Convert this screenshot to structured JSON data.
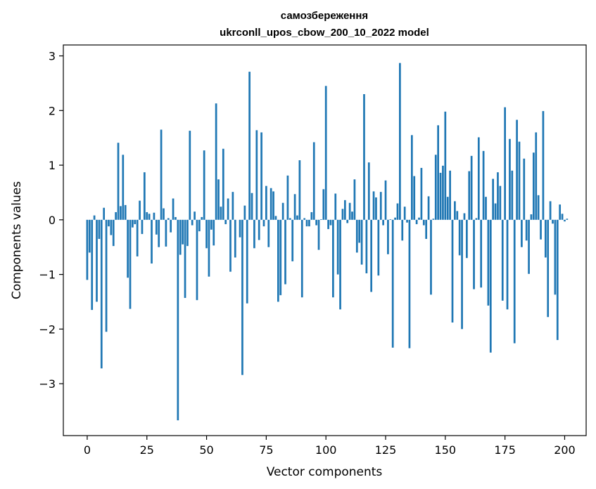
{
  "chart_data": {
    "type": "bar",
    "title": "самозбереження",
    "subtitle": "ukrconll_upos_cbow_200_10_2022 model",
    "xlabel": "Vector components",
    "ylabel": "Components values",
    "xlim": [
      -10,
      209
    ],
    "ylim": [
      -3.95,
      3.2
    ],
    "x_ticks": [
      0,
      25,
      50,
      75,
      100,
      125,
      150,
      175,
      200
    ],
    "y_ticks": [
      -3,
      -2,
      -1,
      0,
      1,
      2,
      3
    ],
    "bar_color": "#1f77b4",
    "grid": false,
    "values": [
      -1.1,
      -0.6,
      -1.65,
      0.08,
      -1.5,
      -0.35,
      -2.72,
      0.22,
      -2.05,
      -0.12,
      -0.28,
      -0.48,
      0.14,
      1.41,
      0.25,
      1.19,
      0.27,
      -1.06,
      -1.63,
      -0.14,
      -0.08,
      -0.67,
      0.35,
      -0.26,
      0.87,
      0.14,
      0.11,
      -0.8,
      0.13,
      -0.27,
      -0.5,
      1.65,
      0.21,
      -0.49,
      0.03,
      -0.23,
      0.39,
      0.05,
      -3.67,
      -0.64,
      -0.45,
      -1.43,
      -0.48,
      1.63,
      -0.1,
      0.15,
      -1.47,
      -0.21,
      0.05,
      1.27,
      -0.52,
      -1.04,
      -0.18,
      -0.47,
      2.13,
      0.74,
      0.24,
      1.3,
      -0.08,
      0.39,
      -0.95,
      0.51,
      -0.69,
      0.0,
      -0.32,
      -2.84,
      0.26,
      -1.53,
      2.71,
      0.49,
      -0.52,
      1.64,
      -0.37,
      1.6,
      -0.12,
      0.62,
      -0.5,
      0.58,
      0.52,
      0.07,
      -1.5,
      -1.38,
      0.31,
      -1.18,
      0.81,
      0.03,
      -0.76,
      0.47,
      0.08,
      1.09,
      -1.42,
      0.03,
      -0.12,
      -0.12,
      0.14,
      1.42,
      -0.1,
      -0.55,
      0.01,
      0.56,
      2.45,
      -0.17,
      -0.1,
      -1.42,
      0.48,
      -1.0,
      -1.64,
      0.2,
      0.36,
      -0.06,
      0.31,
      0.15,
      0.74,
      -0.6,
      -0.42,
      -0.82,
      2.3,
      -0.98,
      1.05,
      -1.32,
      0.52,
      0.41,
      -1.02,
      0.51,
      -0.1,
      0.72,
      -0.63,
      0.01,
      -2.34,
      0.04,
      0.3,
      2.87,
      -0.38,
      0.24,
      -0.05,
      -2.35,
      1.55,
      0.8,
      -0.08,
      0.04,
      0.95,
      -0.1,
      -0.35,
      0.43,
      -1.37,
      0.02,
      1.19,
      1.73,
      0.86,
      0.99,
      1.98,
      0.42,
      0.9,
      -1.88,
      0.34,
      0.16,
      -0.65,
      -2.0,
      0.12,
      -0.7,
      0.89,
      1.17,
      -1.27,
      0.03,
      1.51,
      -1.24,
      1.26,
      0.42,
      -1.57,
      -2.43,
      0.75,
      0.3,
      0.87,
      0.62,
      -1.48,
      2.06,
      -1.64,
      1.48,
      0.9,
      -2.26,
      1.83,
      1.43,
      -0.5,
      1.12,
      -0.38,
      -0.99,
      0.1,
      1.23,
      1.6,
      0.45,
      -0.36,
      1.99,
      -0.69,
      -1.78,
      0.34,
      -0.07,
      -1.37,
      -2.2,
      0.28,
      0.11,
      -0.03,
      0.02
    ]
  }
}
